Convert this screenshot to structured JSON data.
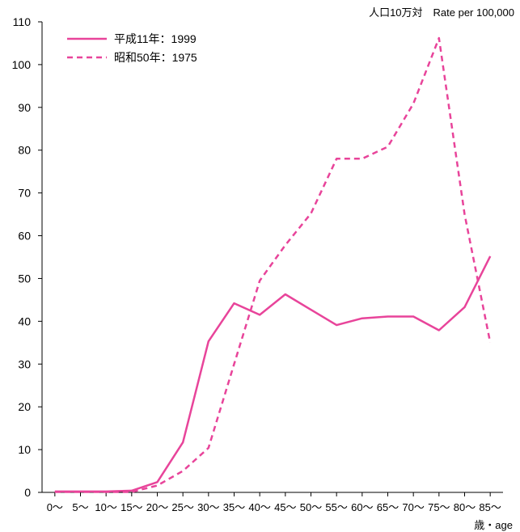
{
  "chart_data": {
    "type": "line",
    "unit_label": "人口10万対　Rate per 100,000",
    "xlabel": "歳・age",
    "categories": [
      "0〜",
      "5〜",
      "10〜",
      "15〜",
      "20〜",
      "25〜",
      "30〜",
      "35〜",
      "40〜",
      "45〜",
      "50〜",
      "55〜",
      "60〜",
      "65〜",
      "70〜",
      "75〜",
      "80〜",
      "85〜"
    ],
    "ylim": [
      0,
      110
    ],
    "yticks": [
      0,
      10,
      20,
      30,
      40,
      50,
      60,
      70,
      80,
      90,
      100,
      110
    ],
    "grid": false,
    "legend_position": "top-left",
    "series": [
      {
        "name": "平成11年：1999",
        "style": "solid",
        "color": "#e8449a",
        "values": [
          0.2,
          0.2,
          0.2,
          0.4,
          2.4,
          11.7,
          35.3,
          44.2,
          41.5,
          46.3,
          42.7,
          39.1,
          40.7,
          41.1,
          41.1,
          37.9,
          43.3,
          55.2
        ]
      },
      {
        "name": "昭和50年：1975",
        "style": "dashed",
        "color": "#e8449a",
        "values": [
          0.1,
          0.1,
          0.1,
          0.1,
          1.6,
          5.0,
          10.4,
          30.0,
          49.5,
          57.8,
          65.2,
          78.0,
          78.0,
          80.8,
          90.9,
          106.2,
          65.0,
          35.0
        ]
      }
    ]
  }
}
